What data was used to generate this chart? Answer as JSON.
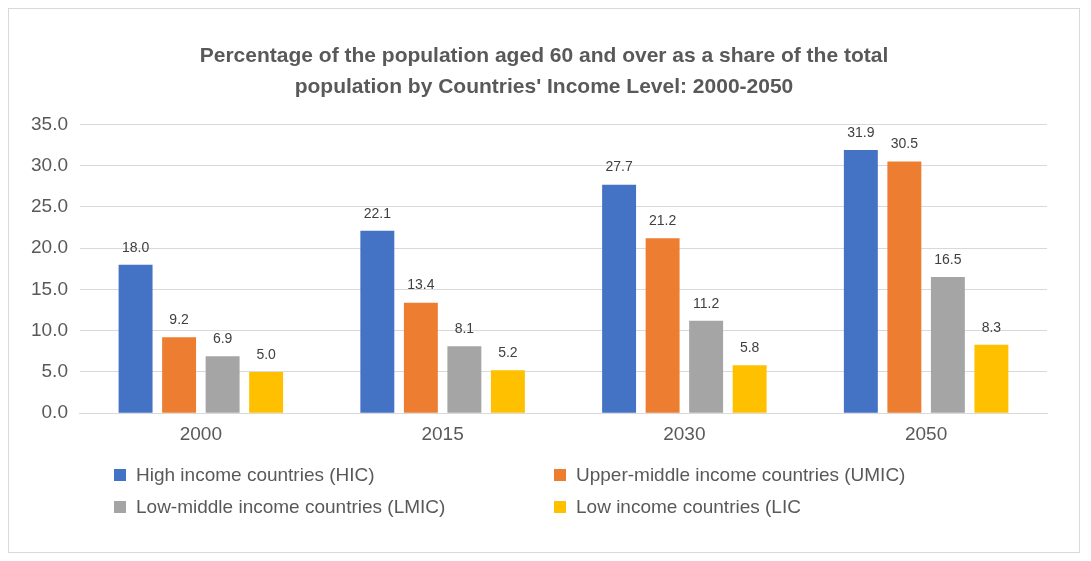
{
  "chart_data": {
    "type": "bar",
    "title": "Percentage of the population aged 60 and over as a share of the total population by Countries' Income Level: 2000-2050",
    "categories": [
      "2000",
      "2015",
      "2030",
      "2050"
    ],
    "series": [
      {
        "name": "High income countries (HIC)",
        "color": "#4472c4",
        "values": [
          18.0,
          22.1,
          27.7,
          31.9
        ],
        "value_labels": [
          "18.0",
          "22.1",
          "27.7",
          "31.9"
        ]
      },
      {
        "name": "Upper-middle income countries (UMIC)",
        "color": "#ed7d31",
        "values": [
          9.2,
          13.4,
          21.2,
          30.5
        ],
        "value_labels": [
          "9.2",
          "13.4",
          "21.2",
          "30.5"
        ]
      },
      {
        "name": "Low-middle income countries (LMIC)",
        "color": "#a5a5a5",
        "values": [
          6.9,
          8.1,
          11.2,
          16.5
        ],
        "value_labels": [
          "6.9",
          "8.1",
          "11.2",
          "16.5"
        ]
      },
      {
        "name": "Low income countries (LIC",
        "color": "#ffc000",
        "values": [
          5.0,
          5.2,
          5.8,
          8.3
        ],
        "value_labels": [
          "5.0",
          "5.2",
          "5.8",
          "8.3"
        ]
      }
    ],
    "ylim": [
      0,
      35
    ],
    "yticks": [
      {
        "value": 0,
        "label": "0.0"
      },
      {
        "value": 5,
        "label": "5.0"
      },
      {
        "value": 10,
        "label": "10.0"
      },
      {
        "value": 15,
        "label": "15.0"
      },
      {
        "value": 20,
        "label": "20.0"
      },
      {
        "value": 25,
        "label": "25.0"
      },
      {
        "value": 30,
        "label": "30.0"
      },
      {
        "value": 35,
        "label": "35.0"
      }
    ],
    "grid": "y",
    "legend": "bottom"
  }
}
